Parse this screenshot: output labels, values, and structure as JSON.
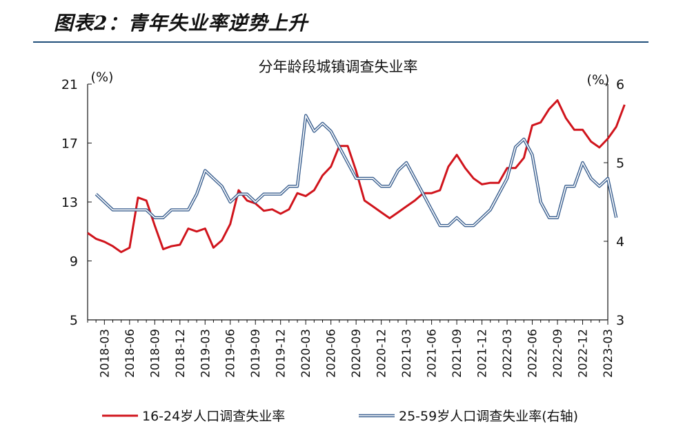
{
  "figure_title": "图表2：青年失业率逆势上升",
  "chart_data": {
    "type": "line",
    "title": "分年龄段城镇调查失业率",
    "left_axis": {
      "unit": "(%)",
      "ylim": [
        5,
        21
      ],
      "ticks": [
        5,
        9,
        13,
        17,
        21
      ]
    },
    "right_axis": {
      "unit": "(%)",
      "ylim": [
        3,
        6
      ],
      "ticks": [
        3,
        4,
        5,
        6
      ]
    },
    "x_tick_labels": [
      "2018-03",
      "2018-06",
      "2018-09",
      "2018-12",
      "2019-03",
      "2019-06",
      "2019-09",
      "2019-12",
      "2020-03",
      "2020-06",
      "2020-09",
      "2020-12",
      "2021-03",
      "2021-06",
      "2021-09",
      "2021-12",
      "2022-03",
      "2022-06",
      "2022-09",
      "2022-12",
      "2023-03"
    ],
    "x_start": "2018-01",
    "x_end": "2023-03",
    "grid": false,
    "legend_position": "bottom",
    "series": [
      {
        "name": "16-24岁人口调查失业率",
        "axis": "left",
        "color": "#d0141c",
        "start": "2018-01",
        "values": [
          10.9,
          10.5,
          10.3,
          10.0,
          9.6,
          9.9,
          13.3,
          13.1,
          11.4,
          9.8,
          10.0,
          10.1,
          11.2,
          11.0,
          11.2,
          9.9,
          10.4,
          11.5,
          13.8,
          13.1,
          12.9,
          12.4,
          12.5,
          12.2,
          12.5,
          13.6,
          13.4,
          13.8,
          14.8,
          15.4,
          16.8,
          16.8,
          15.1,
          13.1,
          12.7,
          12.3,
          11.9,
          12.3,
          12.7,
          13.1,
          13.6,
          13.6,
          13.8,
          15.4,
          16.2,
          15.3,
          14.6,
          14.2,
          14.3,
          14.3,
          15.3,
          15.3,
          16.0,
          18.2,
          18.4,
          19.3,
          19.9,
          18.7,
          17.9,
          17.9,
          17.1,
          16.7,
          17.3,
          18.1,
          19.6
        ]
      },
      {
        "name": "25-59岁人口调查失业率(右轴)",
        "axis": "right",
        "color": "#3a5f8f",
        "start": "2018-02",
        "values": [
          4.6,
          4.5,
          4.4,
          4.4,
          4.4,
          4.4,
          4.4,
          4.3,
          4.3,
          4.4,
          4.4,
          4.4,
          4.6,
          4.9,
          4.8,
          4.7,
          4.5,
          4.6,
          4.6,
          4.5,
          4.6,
          4.6,
          4.6,
          4.7,
          4.7,
          5.6,
          5.4,
          5.5,
          5.4,
          5.2,
          5.0,
          4.8,
          4.8,
          4.8,
          4.7,
          4.7,
          4.9,
          5.0,
          4.8,
          4.6,
          4.4,
          4.2,
          4.2,
          4.3,
          4.2,
          4.2,
          4.3,
          4.4,
          4.6,
          4.8,
          5.2,
          5.3,
          5.1,
          4.5,
          4.3,
          4.3,
          4.7,
          4.7,
          5.0,
          4.8,
          4.7,
          4.8,
          4.3
        ]
      }
    ]
  }
}
